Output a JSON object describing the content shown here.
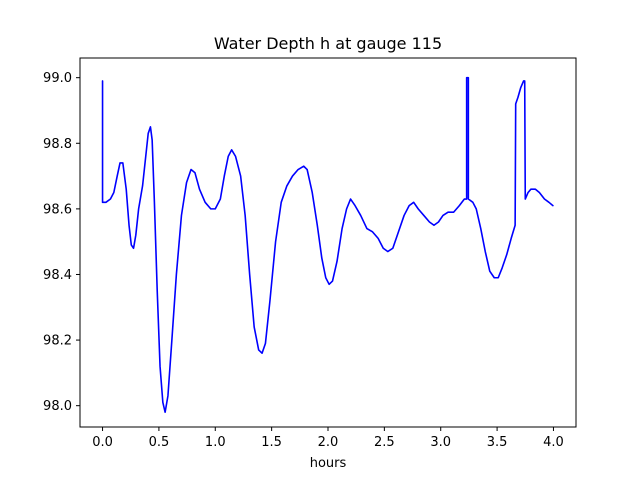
{
  "chart_data": {
    "type": "line",
    "title": "Water Depth h at gauge 115",
    "xlabel": "hours",
    "ylabel": "",
    "xlim": [
      -0.2,
      4.2
    ],
    "ylim": [
      97.935,
      99.06
    ],
    "xticks": [
      0.0,
      0.5,
      1.0,
      1.5,
      2.0,
      2.5,
      3.0,
      3.5,
      4.0
    ],
    "xtick_labels": [
      "0.0",
      "0.5",
      "1.0",
      "1.5",
      "2.0",
      "2.5",
      "3.0",
      "3.5",
      "4.0"
    ],
    "yticks": [
      98.0,
      98.2,
      98.4,
      98.6,
      98.8,
      99.0
    ],
    "ytick_labels": [
      "98.0",
      "98.2",
      "98.4",
      "98.6",
      "98.8",
      "99.0"
    ],
    "grid": false,
    "legend": "none",
    "series": [
      {
        "color": "#0000ff",
        "points": [
          [
            0.0,
            98.99
          ],
          [
            0.0,
            98.62
          ],
          [
            0.03,
            98.62
          ],
          [
            0.07,
            98.63
          ],
          [
            0.1,
            98.65
          ],
          [
            0.13,
            98.7
          ],
          [
            0.155,
            98.74
          ],
          [
            0.18,
            98.74
          ],
          [
            0.21,
            98.66
          ],
          [
            0.235,
            98.55
          ],
          [
            0.255,
            98.49
          ],
          [
            0.275,
            98.48
          ],
          [
            0.295,
            98.52
          ],
          [
            0.32,
            98.6
          ],
          [
            0.355,
            98.67
          ],
          [
            0.38,
            98.75
          ],
          [
            0.405,
            98.83
          ],
          [
            0.425,
            98.85
          ],
          [
            0.44,
            98.81
          ],
          [
            0.46,
            98.62
          ],
          [
            0.485,
            98.35
          ],
          [
            0.51,
            98.12
          ],
          [
            0.535,
            98.01
          ],
          [
            0.555,
            97.98
          ],
          [
            0.58,
            98.03
          ],
          [
            0.615,
            98.2
          ],
          [
            0.655,
            98.4
          ],
          [
            0.7,
            98.58
          ],
          [
            0.745,
            98.68
          ],
          [
            0.785,
            98.72
          ],
          [
            0.82,
            98.71
          ],
          [
            0.86,
            98.66
          ],
          [
            0.91,
            98.62
          ],
          [
            0.96,
            98.6
          ],
          [
            1.0,
            98.6
          ],
          [
            1.045,
            98.63
          ],
          [
            1.08,
            98.7
          ],
          [
            1.115,
            98.76
          ],
          [
            1.145,
            98.78
          ],
          [
            1.18,
            98.76
          ],
          [
            1.225,
            98.7
          ],
          [
            1.265,
            98.58
          ],
          [
            1.305,
            98.4
          ],
          [
            1.345,
            98.24
          ],
          [
            1.385,
            98.17
          ],
          [
            1.415,
            98.16
          ],
          [
            1.445,
            98.19
          ],
          [
            1.485,
            98.32
          ],
          [
            1.535,
            98.5
          ],
          [
            1.585,
            98.62
          ],
          [
            1.635,
            98.67
          ],
          [
            1.685,
            98.7
          ],
          [
            1.735,
            98.72
          ],
          [
            1.785,
            98.73
          ],
          [
            1.815,
            98.72
          ],
          [
            1.86,
            98.65
          ],
          [
            1.905,
            98.55
          ],
          [
            1.945,
            98.45
          ],
          [
            1.98,
            98.39
          ],
          [
            2.01,
            98.37
          ],
          [
            2.04,
            98.38
          ],
          [
            2.08,
            98.44
          ],
          [
            2.125,
            98.54
          ],
          [
            2.165,
            98.6
          ],
          [
            2.2,
            98.63
          ],
          [
            2.24,
            98.61
          ],
          [
            2.29,
            98.58
          ],
          [
            2.345,
            98.54
          ],
          [
            2.395,
            98.53
          ],
          [
            2.445,
            98.51
          ],
          [
            2.49,
            98.48
          ],
          [
            2.53,
            98.47
          ],
          [
            2.575,
            98.48
          ],
          [
            2.625,
            98.53
          ],
          [
            2.675,
            98.58
          ],
          [
            2.72,
            98.61
          ],
          [
            2.76,
            98.62
          ],
          [
            2.8,
            98.6
          ],
          [
            2.85,
            98.58
          ],
          [
            2.9,
            98.56
          ],
          [
            2.94,
            98.55
          ],
          [
            2.98,
            98.56
          ],
          [
            3.02,
            98.58
          ],
          [
            3.065,
            98.59
          ],
          [
            3.115,
            98.59
          ],
          [
            3.165,
            98.61
          ],
          [
            3.21,
            98.63
          ],
          [
            3.23,
            98.63
          ],
          [
            3.23,
            99.0
          ],
          [
            3.245,
            99.0
          ],
          [
            3.245,
            98.63
          ],
          [
            3.285,
            98.62
          ],
          [
            3.315,
            98.6
          ],
          [
            3.355,
            98.54
          ],
          [
            3.395,
            98.47
          ],
          [
            3.435,
            98.41
          ],
          [
            3.475,
            98.39
          ],
          [
            3.51,
            98.39
          ],
          [
            3.545,
            98.42
          ],
          [
            3.585,
            98.46
          ],
          [
            3.625,
            98.51
          ],
          [
            3.66,
            98.55
          ],
          [
            3.665,
            98.92
          ],
          [
            3.685,
            98.94
          ],
          [
            3.71,
            98.97
          ],
          [
            3.735,
            98.99
          ],
          [
            3.745,
            98.99
          ],
          [
            3.75,
            98.63
          ],
          [
            3.775,
            98.65
          ],
          [
            3.8,
            98.66
          ],
          [
            3.84,
            98.66
          ],
          [
            3.875,
            98.65
          ],
          [
            3.92,
            98.63
          ],
          [
            3.96,
            98.62
          ],
          [
            3.995,
            98.61
          ]
        ]
      }
    ]
  }
}
